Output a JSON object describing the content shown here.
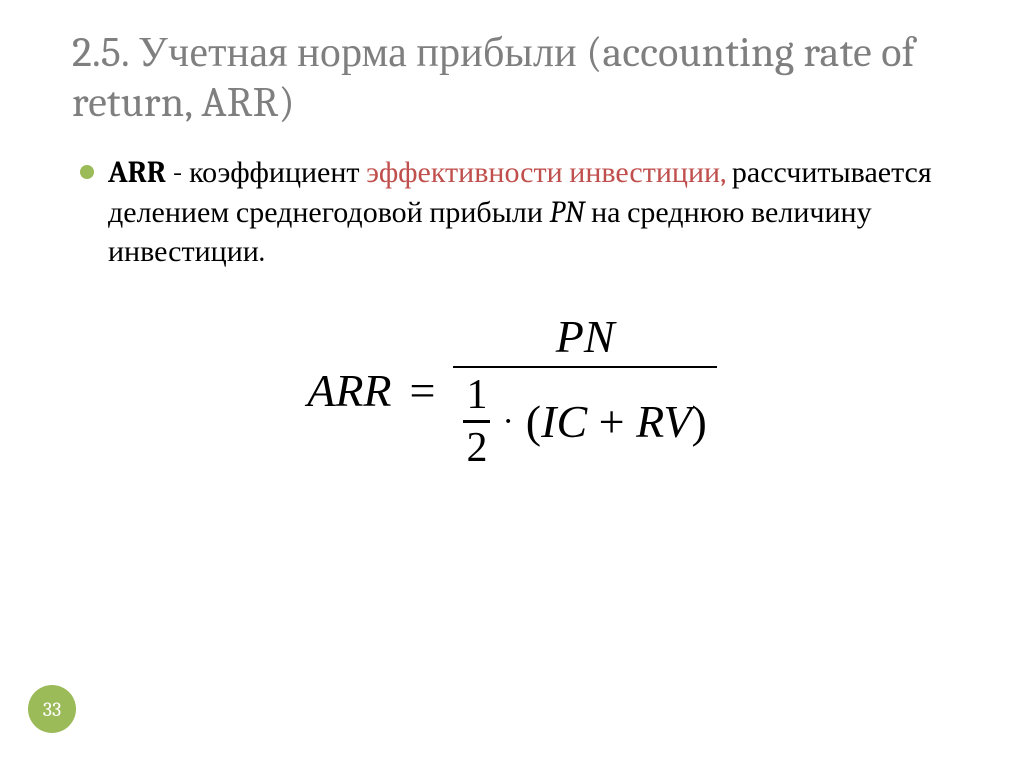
{
  "colors": {
    "title": "#7f7f7f",
    "accent": "#c0504d",
    "bullet": "#9bba58",
    "text": "#000000",
    "badge_bg": "#9bba58",
    "badge_text": "#ffffff",
    "background": "#ffffff"
  },
  "fontsizes": {
    "title": 42,
    "body": 30,
    "formula": 46,
    "badge": 20
  },
  "title": "2.5. Учетная норма прибыли (accounting rate of return, ARR)",
  "body": {
    "term": "ARR",
    "dash": " - ",
    "lead": "коэффициент ",
    "accent": "эффективности инвестиции,",
    "tail_1": " рассчитывается делением среднегодовой прибыли ",
    "pn": "PN",
    "tail_2": " на среднюю величину инвестиции."
  },
  "formula": {
    "lhs": "ARR",
    "eq": "=",
    "numerator": "PN",
    "half_num": "1",
    "half_den": "2",
    "dot": "·",
    "open": "(",
    "ic": "IC",
    "plus": " + ",
    "rv": "RV",
    "close": ")"
  },
  "page_number": "33"
}
